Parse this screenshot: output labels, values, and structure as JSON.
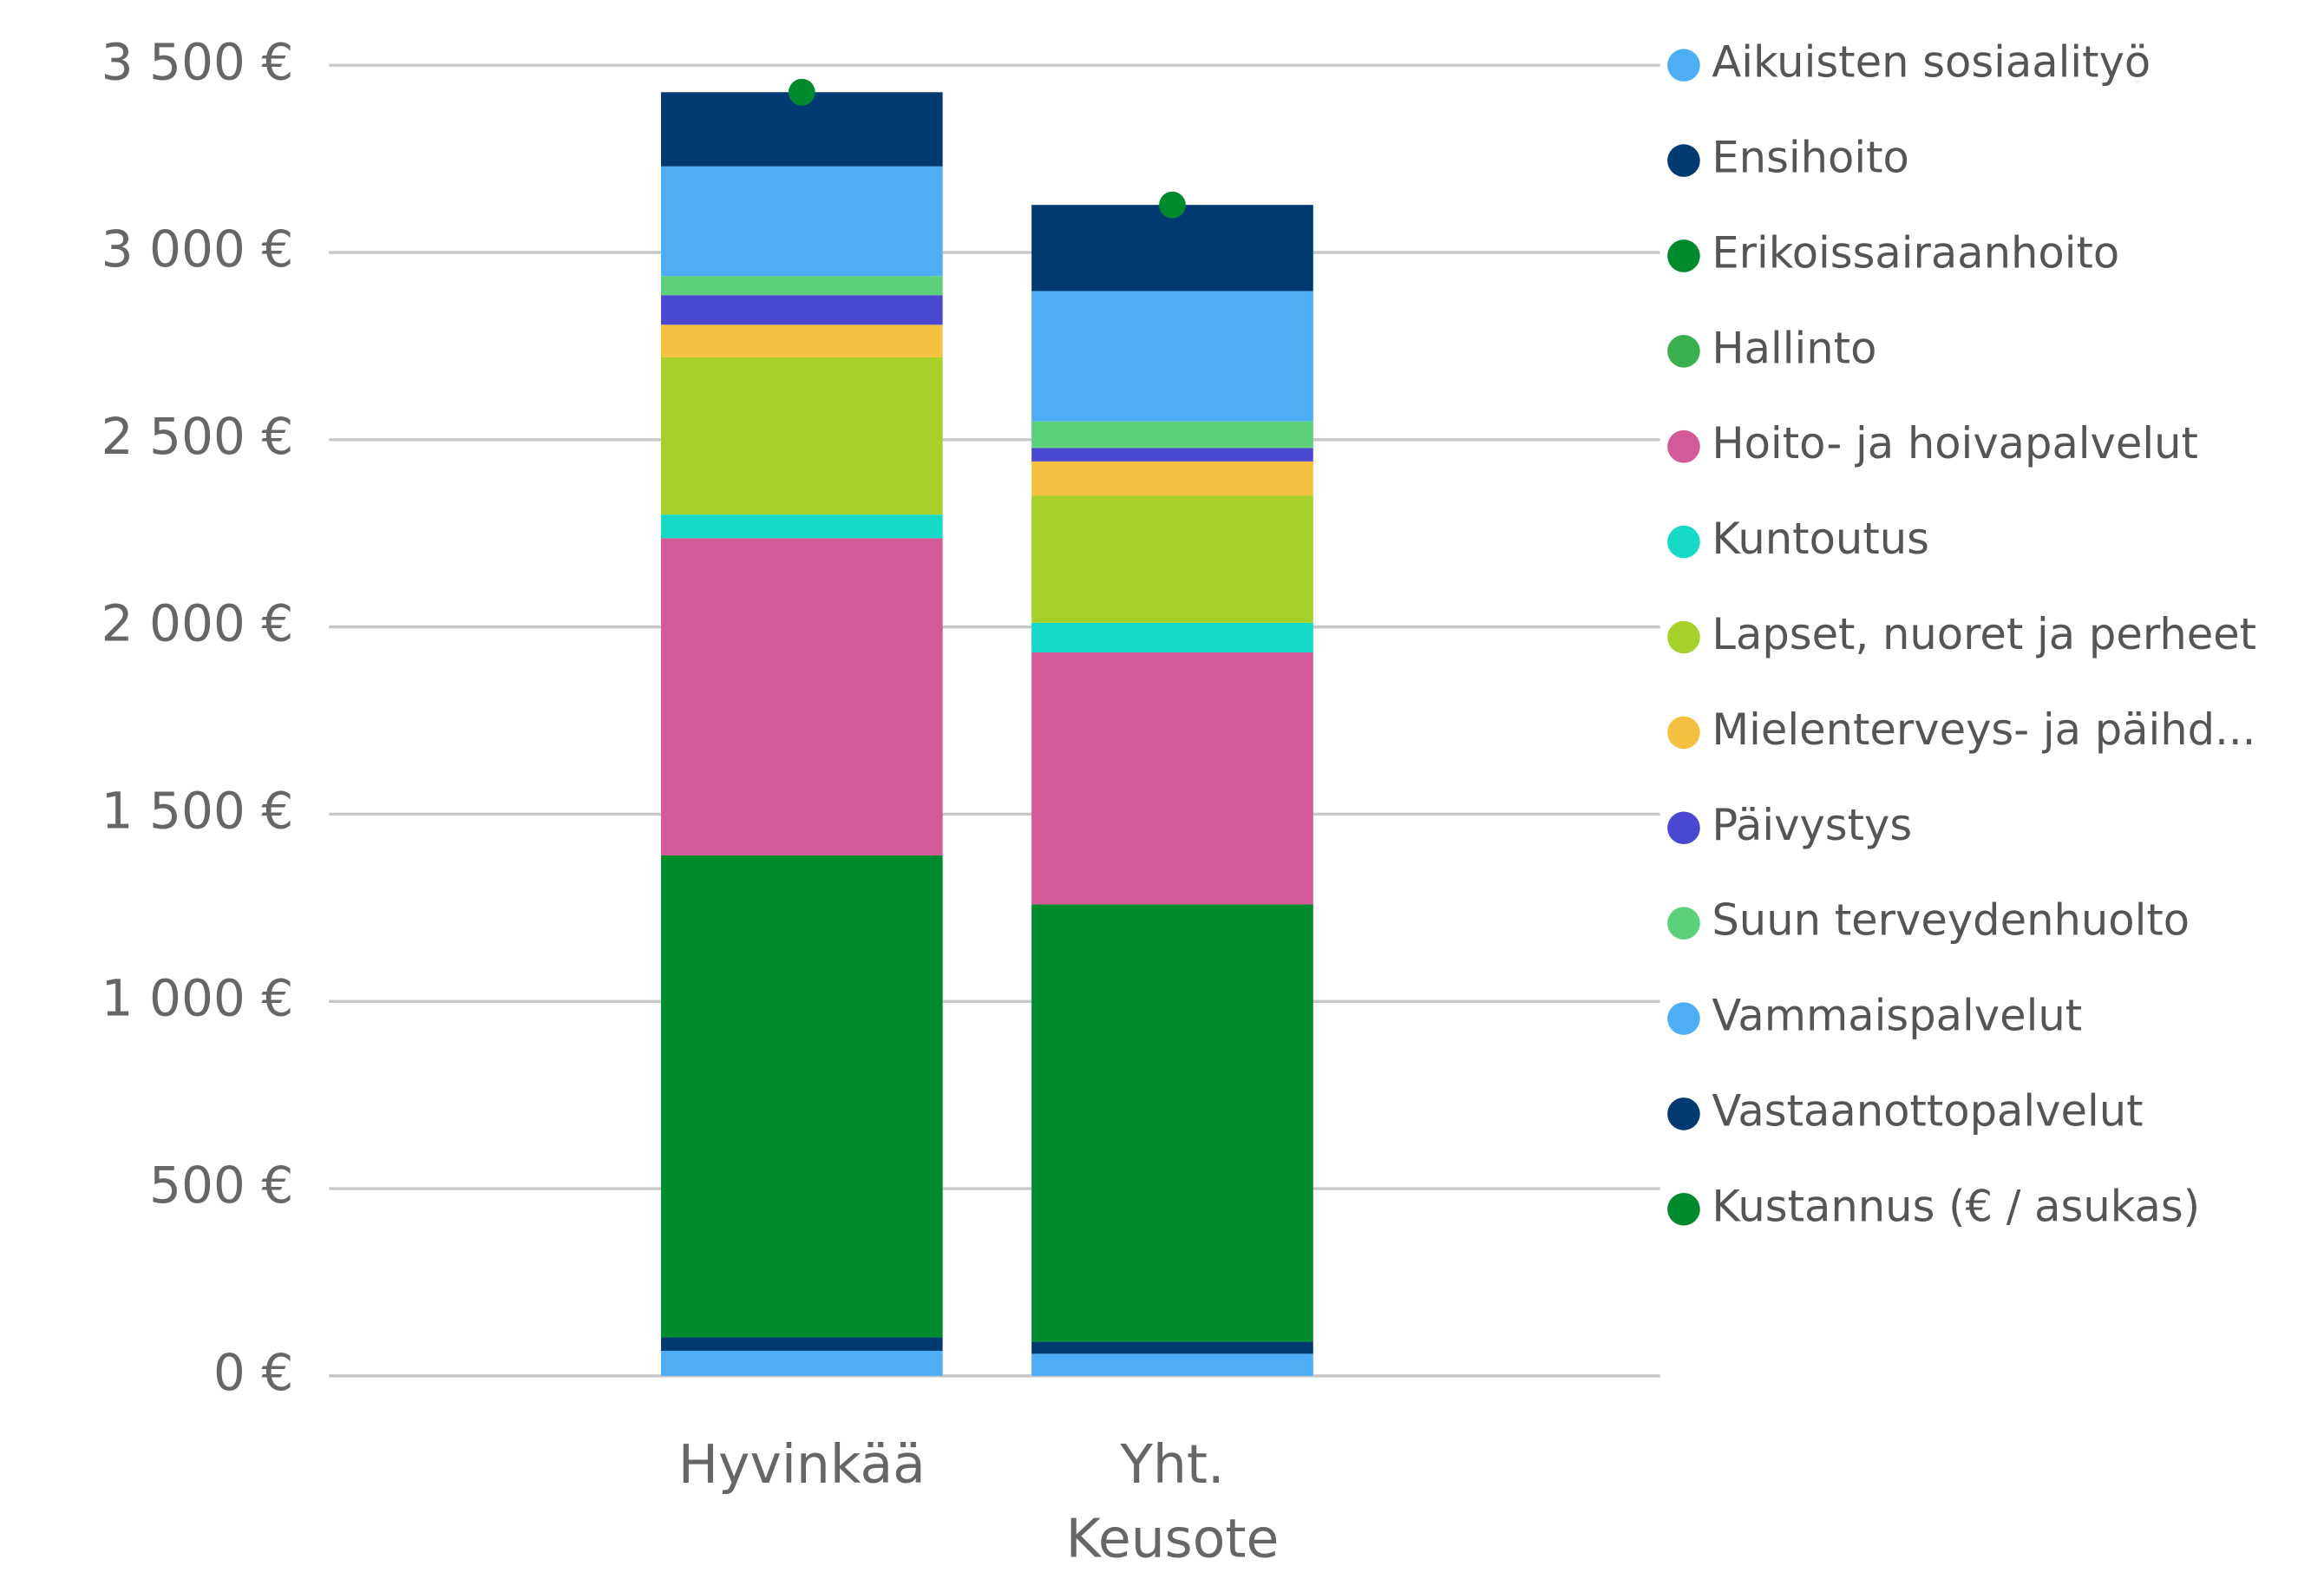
{
  "chart_data": {
    "type": "stacked_bar",
    "categories": [
      "Hyvinkää",
      "Yht. Keusote"
    ],
    "series": [
      {
        "name": "Aikuisten sosiaalityö",
        "color": "#4daef5",
        "values": [
          67,
          59
        ]
      },
      {
        "name": "Ensihoito",
        "color": "#003a70",
        "values": [
          36,
          32
        ]
      },
      {
        "name": "Erikoissairaanhoito",
        "color": "#008a2e",
        "values": [
          1287,
          1168
        ]
      },
      {
        "name": "Hallinto",
        "color": "#3aaf4f",
        "values": [
          0,
          0
        ]
      },
      {
        "name": "Hoito- ja hoivapalvelut",
        "color": "#d35a96",
        "values": [
          847,
          673
        ]
      },
      {
        "name": "Kuntoutus",
        "color": "#17d9c8",
        "values": [
          63,
          79
        ]
      },
      {
        "name": "Lapset, nuoret ja perheet",
        "color": "#a6d12a",
        "values": [
          420,
          340
        ]
      },
      {
        "name": "Mielenterveys- ja päihd...",
        "color": "#f5c040",
        "values": [
          87,
          91
        ]
      },
      {
        "name": "Päivystys",
        "color": "#4a47d1",
        "values": [
          79,
          36
        ]
      },
      {
        "name": "Suun terveydenhuolto",
        "color": "#5ad17a",
        "values": [
          51,
          71
        ]
      },
      {
        "name": "Vammaispalvelut",
        "color": "#4daef5",
        "values": [
          293,
          348
        ]
      },
      {
        "name": "Vastaanottopalvelut",
        "color": "#003a70",
        "values": [
          198,
          230
        ]
      },
      {
        "name": "Kustannus (€ / asukas)",
        "color": "#008a2e",
        "type": "point",
        "values": [
          3428,
          3127
        ]
      }
    ],
    "ylim": [
      0,
      3500
    ],
    "yticks": [
      {
        "value": 0,
        "label": "0 €"
      },
      {
        "value": 500,
        "label": "500 €"
      },
      {
        "value": 1000,
        "label": "1 000 €"
      },
      {
        "value": 1500,
        "label": "1 500 €"
      },
      {
        "value": 2000,
        "label": "2 000 €"
      },
      {
        "value": 2500,
        "label": "2 500 €"
      },
      {
        "value": 3000,
        "label": "3 000 €"
      },
      {
        "value": 3500,
        "label": "3 500 €"
      }
    ],
    "grid": true,
    "legend": "right"
  }
}
